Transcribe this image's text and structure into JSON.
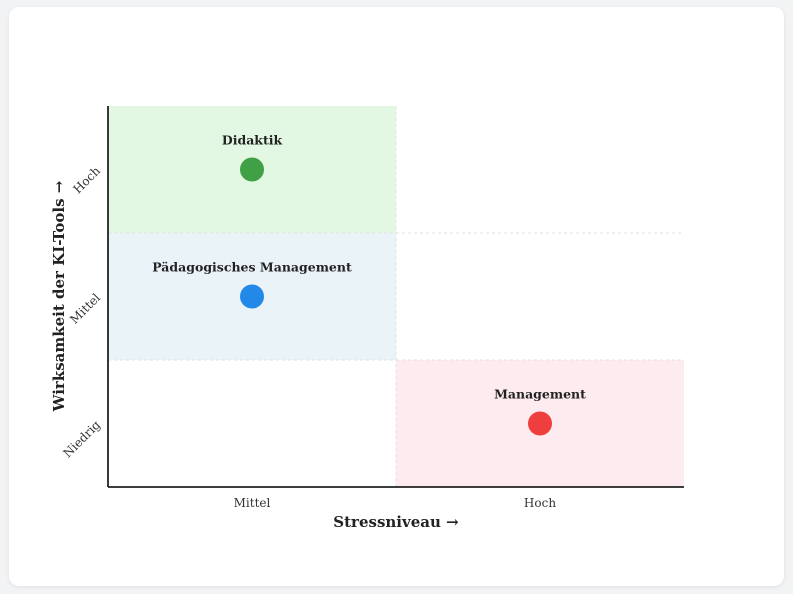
{
  "chart_data": {
    "type": "scatter",
    "title": "",
    "xlabel": "Stressniveau →",
    "ylabel": "Wirksamkeit der KI-Tools →",
    "x_categories": [
      "Mittel",
      "Hoch"
    ],
    "y_categories": [
      "Niedrig",
      "Mittel",
      "Hoch"
    ],
    "regions": [
      {
        "x": "Mittel",
        "y": "Hoch",
        "color": "#e3f8e3"
      },
      {
        "x": "Mittel",
        "y": "Mittel",
        "color": "#eaf3f7"
      },
      {
        "x": "Hoch",
        "y": "Niedrig",
        "color": "#fdebef"
      }
    ],
    "points": [
      {
        "label": "Didaktik",
        "x": "Mittel",
        "y": "Hoch",
        "color": "#3fa046"
      },
      {
        "label": "Pädagogisches Management",
        "x": "Mittel",
        "y": "Mittel",
        "color": "#2289e8"
      },
      {
        "label": "Management",
        "x": "Hoch",
        "y": "Niedrig",
        "color": "#ee3e3e"
      }
    ],
    "grid": true,
    "legend": "none"
  }
}
